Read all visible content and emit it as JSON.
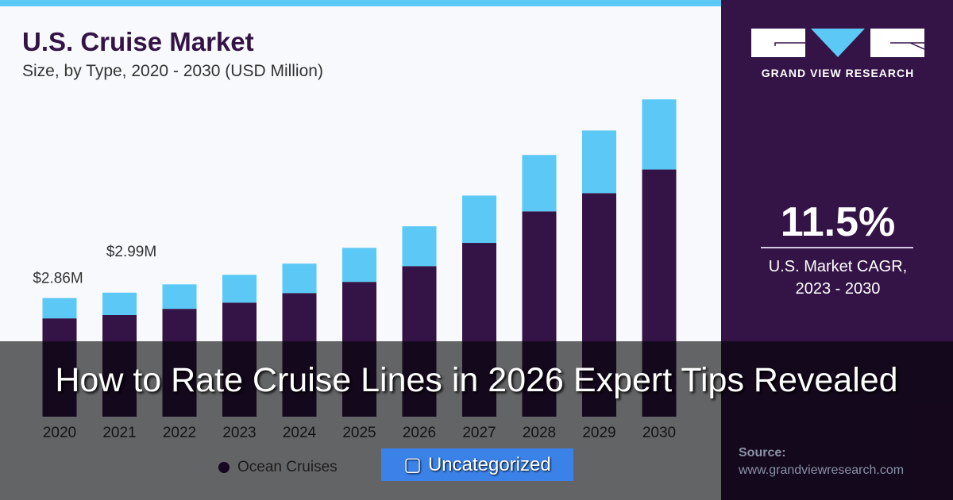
{
  "chart_data": {
    "type": "bar",
    "stacked": true,
    "title": "U.S. Cruise Market",
    "subtitle": "Size, by Type, 2020 - 2030 (USD Million)",
    "categories": [
      "2020",
      "2021",
      "2022",
      "2023",
      "2024",
      "2025",
      "2026",
      "2027",
      "2028",
      "2029",
      "2030"
    ],
    "series": [
      {
        "name": "Ocean Cruises",
        "color": "#341447",
        "values": [
          2.37,
          2.45,
          2.6,
          2.75,
          2.98,
          3.25,
          3.63,
          4.19,
          4.95,
          5.39,
          5.96
        ]
      },
      {
        "color": "#5bc8f5",
        "values": [
          0.49,
          0.54,
          0.59,
          0.67,
          0.71,
          0.82,
          0.96,
          1.14,
          1.36,
          1.51,
          1.69
        ]
      }
    ],
    "data_labels": [
      {
        "category": "2020",
        "text": "$2.86M"
      },
      {
        "category": "2021",
        "text": "$2.99M"
      }
    ],
    "ylim": [
      0,
      8.1
    ],
    "grid": false,
    "legend": "bottom"
  },
  "sidebar": {
    "brand": "GRAND VIEW RESEARCH",
    "cagr_value": "11.5%",
    "cagr_label_1": "U.S. Market CAGR,",
    "cagr_label_2": "2023 - 2030",
    "source_label": "Source:",
    "source_url": "www.grandviewresearch.com"
  },
  "overlay": {
    "headline": "How to Rate Cruise Lines in 2026 Expert Tips Revealed",
    "category_icon": "folder-icon",
    "category": "Uncategorized"
  }
}
